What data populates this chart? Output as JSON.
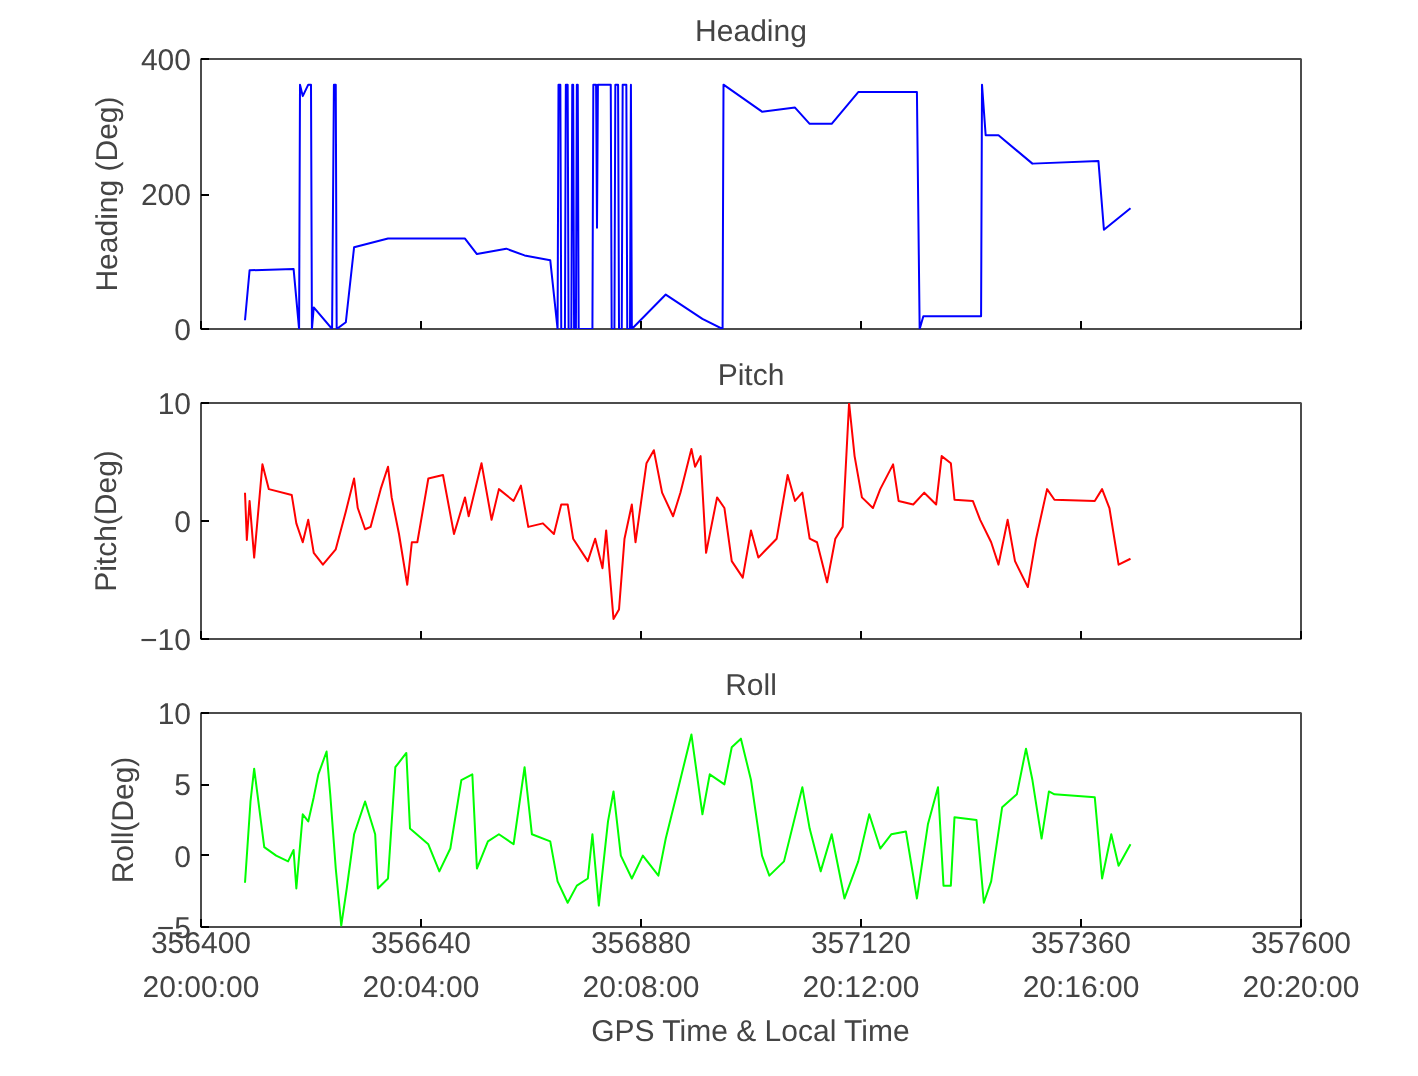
{
  "chart_data": [
    {
      "type": "line",
      "title": "Heading",
      "ylabel": "Heading (Deg)",
      "xlim": [
        356400,
        357600
      ],
      "xticks": [
        356400,
        356640,
        356880,
        357120,
        357360,
        357600
      ],
      "ylim": [
        0,
        400
      ],
      "yticks": [
        0,
        200,
        400
      ],
      "grid": false,
      "tick_labels": "y",
      "series": [
        {
          "color": "#0000ff",
          "x": [
            356448,
            356453,
            356501,
            356507,
            356508,
            356511,
            356517,
            356520,
            356521,
            356523,
            356543,
            356545,
            356547,
            356548,
            356558,
            356567,
            356604,
            356688,
            356701,
            356733,
            356753,
            356781,
            356789,
            356790,
            356792,
            356793,
            356797,
            356798,
            356800,
            356801,
            356804,
            356805,
            356806,
            356807,
            356809,
            356810,
            356811,
            356812,
            356827,
            356828,
            356831,
            356832,
            356833,
            356847,
            356848,
            356851,
            356852,
            356855,
            356856,
            356859,
            356860,
            356864,
            356865,
            356868,
            356869,
            356870,
            356907,
            356947,
            356969,
            356970,
            357012,
            357048,
            357064,
            357088,
            357117,
            357181,
            357184,
            357188,
            357251,
            357252,
            357256,
            357270,
            357307,
            357379,
            357385,
            357414
          ],
          "values": [
            13,
            87,
            89,
            0,
            362,
            345,
            362,
            362,
            0,
            32,
            0,
            362,
            362,
            0,
            10,
            121,
            134,
            134,
            111,
            119,
            109,
            102,
            0,
            362,
            362,
            0,
            0,
            362,
            362,
            0,
            0,
            362,
            362,
            0,
            0,
            362,
            362,
            0,
            0,
            362,
            362,
            150,
            362,
            362,
            0,
            0,
            362,
            362,
            0,
            0,
            362,
            362,
            0,
            0,
            362,
            0,
            51,
            15,
            0,
            362,
            322,
            328,
            304,
            304,
            351,
            351,
            0,
            19,
            19,
            362,
            287,
            287,
            245,
            249,
            147,
            179
          ]
        }
      ]
    },
    {
      "type": "line",
      "title": "Pitch",
      "ylabel": "Pitch(Deg)",
      "xlim": [
        356400,
        357600
      ],
      "xticks": [
        356400,
        356640,
        356880,
        357120,
        357360,
        357600
      ],
      "ylim": [
        -10,
        10
      ],
      "yticks": [
        -10,
        0,
        10
      ],
      "grid": false,
      "tick_labels": "y",
      "series": [
        {
          "color": "#ff0000",
          "x": [
            356448,
            356450,
            356453,
            356458,
            356467,
            356474,
            356499,
            356504,
            356511,
            356517,
            356523,
            356533,
            356547,
            356558,
            356567,
            356571,
            356579,
            356585,
            356596,
            356604,
            356608,
            356616,
            356625,
            356630,
            356636,
            356648,
            356664,
            356676,
            356688,
            356692,
            356706,
            356717,
            356725,
            356741,
            356749,
            356757,
            356773,
            356785,
            356793,
            356800,
            356806,
            356822,
            356830,
            356838,
            356842,
            356850,
            356856,
            356862,
            356870,
            356874,
            356886,
            356894,
            356903,
            356915,
            356923,
            356935,
            356939,
            356945,
            356951,
            356963,
            356971,
            356979,
            356991,
            357000,
            357008,
            357028,
            357040,
            357048,
            357056,
            357064,
            357072,
            357083,
            357092,
            357100,
            357107,
            357113,
            357121,
            357133,
            357141,
            357155,
            357161,
            357177,
            357189,
            357202,
            357208,
            357218,
            357222,
            357242,
            357250,
            357262,
            357270,
            357280,
            357288,
            357302,
            357311,
            357323,
            357331,
            357375,
            357383,
            357391,
            357401,
            357414
          ],
          "values": [
            2.4,
            -1.6,
            1.7,
            -3.1,
            4.8,
            2.7,
            2.2,
            -0.2,
            -1.8,
            0.1,
            -2.7,
            -3.7,
            -2.4,
            0.8,
            3.6,
            1.1,
            -0.7,
            -0.5,
            2.7,
            4.6,
            2.0,
            -1.1,
            -5.4,
            -1.8,
            -1.8,
            3.6,
            3.9,
            -1.1,
            2.0,
            0.4,
            4.9,
            0.1,
            2.7,
            1.7,
            3.0,
            -0.5,
            -0.2,
            -1.1,
            1.4,
            1.4,
            -1.5,
            -3.4,
            -1.5,
            -4.0,
            -0.8,
            -8.3,
            -7.5,
            -1.5,
            1.4,
            -1.8,
            4.9,
            6.0,
            2.4,
            0.4,
            2.4,
            6.1,
            4.6,
            5.5,
            -2.7,
            2.0,
            1.1,
            -3.4,
            -4.8,
            -0.8,
            -3.1,
            -1.5,
            3.9,
            1.7,
            2.4,
            -1.5,
            -1.8,
            -5.2,
            -1.5,
            -0.5,
            10.0,
            5.5,
            2.0,
            1.1,
            2.7,
            4.8,
            1.7,
            1.4,
            2.4,
            1.4,
            5.5,
            4.9,
            1.8,
            1.7,
            0.1,
            -1.8,
            -3.7,
            0.1,
            -3.4,
            -5.6,
            -1.5,
            2.7,
            1.8,
            1.7,
            2.7,
            1.1,
            -3.7,
            -3.2
          ]
        }
      ]
    },
    {
      "type": "line",
      "title": "Roll",
      "ylabel": "Roll(Deg)",
      "xlabel": "GPS Time & Local Time",
      "xlim": [
        356400,
        357600
      ],
      "xticks": [
        356400,
        356640,
        356880,
        357120,
        357360,
        357600
      ],
      "x2lim": [
        20.0,
        20.33333
      ],
      "x2ticks": [
        {
          "value": 20.0,
          "label": "20:00:00"
        },
        {
          "value": 20.06667,
          "label": "20:04:00"
        },
        {
          "value": 20.13333,
          "label": "20:08:00"
        },
        {
          "value": 20.2,
          "label": "20:12:00"
        },
        {
          "value": 20.26667,
          "label": "20:16:00"
        },
        {
          "value": 20.33333,
          "label": "20:20:00"
        }
      ],
      "ylim": [
        -5,
        10
      ],
      "yticks": [
        -5,
        0,
        5,
        10
      ],
      "grid": false,
      "series": [
        {
          "color": "#00ff00",
          "x": [
            356448,
            356454,
            356458,
            356469,
            356482,
            356495,
            356501,
            356504,
            356511,
            356517,
            356523,
            356528,
            356537,
            356541,
            356547,
            356553,
            356559,
            356567,
            356579,
            356590,
            356593,
            356604,
            356612,
            356624,
            356628,
            356648,
            356660,
            356672,
            356684,
            356696,
            356701,
            356713,
            356725,
            356741,
            356753,
            356761,
            356781,
            356789,
            356800,
            356810,
            356822,
            356827,
            356834,
            356844,
            356850,
            356858,
            356870,
            356882,
            356899,
            356907,
            356919,
            356935,
            356947,
            356955,
            356971,
            356979,
            356989,
            357000,
            357012,
            357020,
            357036,
            357056,
            357064,
            357076,
            357088,
            357102,
            357117,
            357129,
            357141,
            357153,
            357169,
            357181,
            357193,
            357204,
            357210,
            357218,
            357222,
            357246,
            357254,
            357262,
            357274,
            357290,
            357300,
            357307,
            357317,
            357325,
            357331,
            357375,
            357383,
            357393,
            357401,
            357414
          ],
          "values": [
            -1.9,
            3.8,
            6.1,
            0.6,
            0.0,
            -0.4,
            0.4,
            -2.3,
            2.9,
            2.4,
            4.1,
            5.7,
            7.3,
            4.3,
            -0.9,
            -4.9,
            -2.3,
            1.5,
            3.8,
            1.5,
            -2.3,
            -1.6,
            6.2,
            7.2,
            1.9,
            0.8,
            -1.1,
            0.5,
            5.3,
            5.7,
            -0.9,
            1.0,
            1.5,
            0.8,
            6.2,
            1.5,
            1.0,
            -1.8,
            -3.3,
            -2.1,
            -1.6,
            1.5,
            -3.5,
            2.4,
            4.5,
            0.0,
            -1.6,
            0.0,
            -1.4,
            1.2,
            4.3,
            8.5,
            2.9,
            5.7,
            5.0,
            7.6,
            8.2,
            5.3,
            0.0,
            -1.4,
            -0.4,
            4.8,
            1.9,
            -1.1,
            1.5,
            -3.0,
            -0.4,
            2.9,
            0.5,
            1.5,
            1.7,
            -3.0,
            2.2,
            4.8,
            -2.1,
            -2.1,
            2.7,
            2.5,
            -3.3,
            -1.8,
            3.4,
            4.3,
            7.5,
            5.3,
            1.2,
            4.5,
            4.3,
            4.1,
            -1.6,
            1.5,
            -0.7,
            0.8
          ]
        }
      ]
    }
  ]
}
